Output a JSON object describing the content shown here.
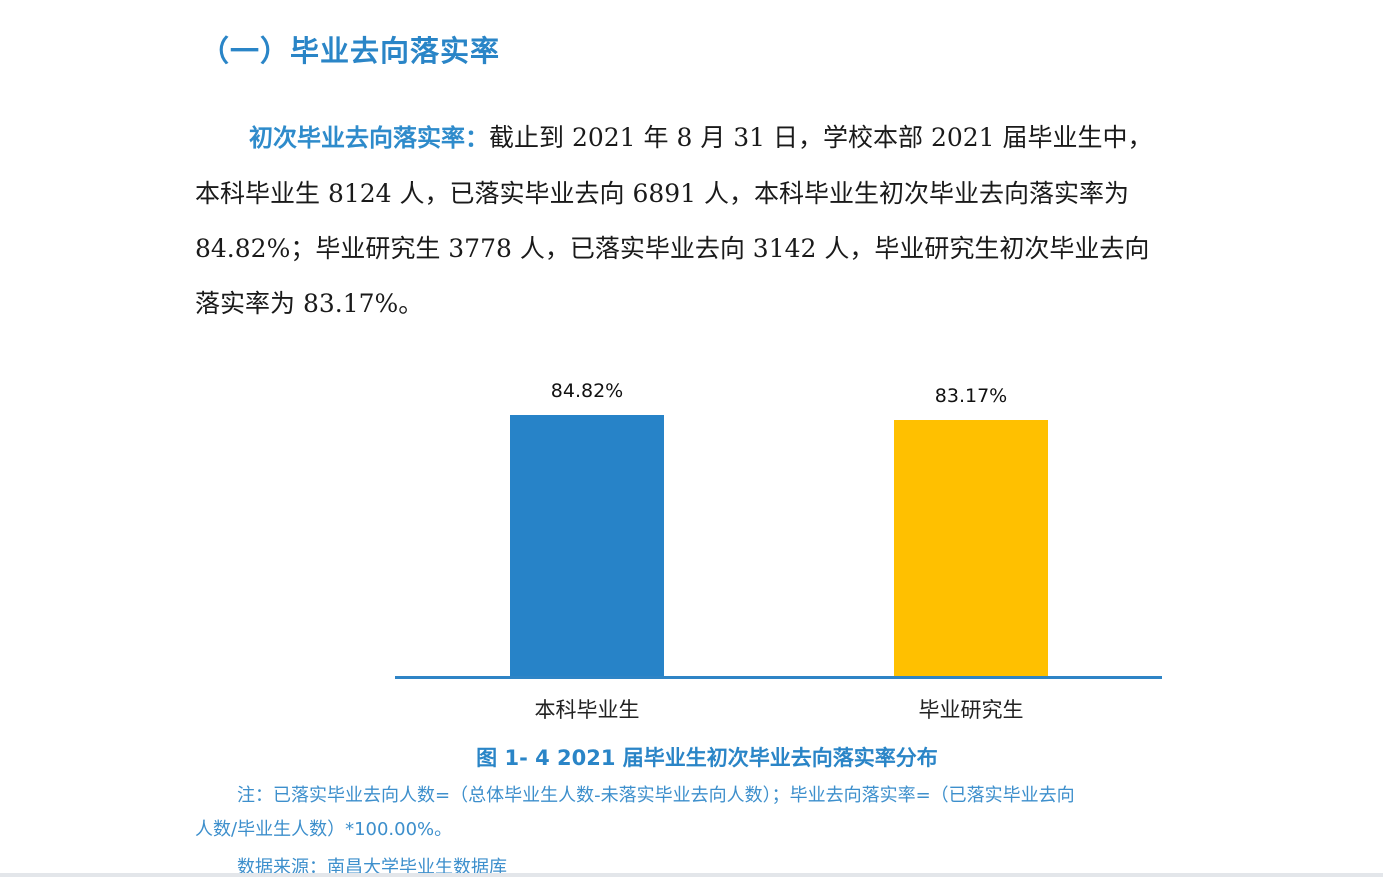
{
  "section": {
    "title": "（一）毕业去向落实率"
  },
  "paragraph": {
    "lead": "初次毕业去向落实率：",
    "lines": [
      "截止到 2021 年 8 月 31 日，学校本部 2021 届毕业生中，",
      "本科毕业生 8124 人，已落实毕业去向 6891 人，本科毕业生初次毕业去向落实率为",
      "84.82%；毕业研究生 3778 人，已落实毕业去向 3142 人，毕业研究生初次毕业去向",
      "落实率为 83.17%。"
    ]
  },
  "chart_data": {
    "type": "bar",
    "title": "图 1- 4  2021 届毕业生初次毕业去向落实率分布",
    "categories": [
      "本科毕业生",
      "毕业研究生"
    ],
    "values": [
      84.82,
      83.17
    ],
    "value_labels": [
      "84.82%",
      "83.17%"
    ],
    "colors": [
      "#2783c8",
      "#ffc000"
    ],
    "xlabel": "",
    "ylabel": "",
    "unit": "%",
    "grid": false,
    "legend": false,
    "axis_color": "#2e84c6"
  },
  "notes": {
    "line1": "注：已落实毕业去向人数=（总体毕业生人数-未落实毕业去向人数）；毕业去向落实率=（已落实毕业去向",
    "line2": "人数/毕业生人数）*100.00%。",
    "source": "数据来源：南昌大学毕业生数据库"
  },
  "colors": {
    "heading_blue": "#2a85c7",
    "note_blue": "#3d8fcc",
    "text": "#1a1a1a"
  }
}
